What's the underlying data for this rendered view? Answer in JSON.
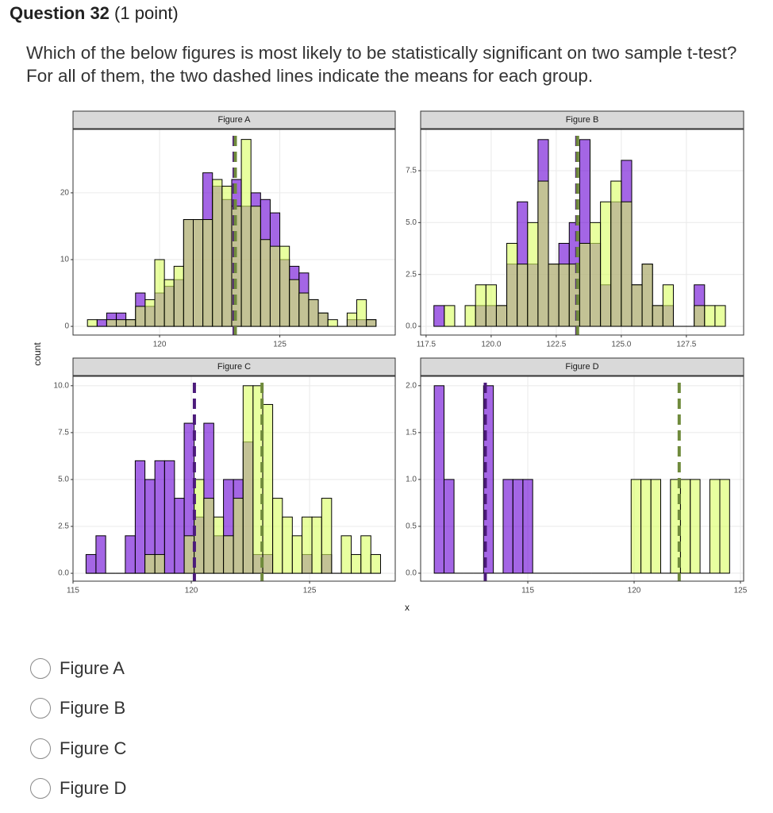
{
  "question": {
    "number": "Question 32",
    "points": "(1 point)",
    "text": "Which of the below figures is most likely to be statistically significant on two sample t-test? For all of them, the two dashed lines indicate the means for each group."
  },
  "axes": {
    "y_label": "count",
    "x_label": "x"
  },
  "chart_data": [
    {
      "type": "histogram",
      "title": "Figure A",
      "bins": [
        117,
        117.4,
        117.8,
        118.2,
        118.6,
        119,
        119.4,
        119.8,
        120.2,
        120.6,
        121,
        121.4,
        121.8,
        122.2,
        122.6,
        123,
        123.4,
        123.8,
        124.2,
        124.6,
        125,
        125.4,
        125.8,
        126.2,
        126.6,
        127,
        127.4,
        127.8,
        128.2,
        128.6,
        129
      ],
      "series": [
        {
          "color": "#6700d4",
          "mean_color": "#4b1a7a",
          "mean": 123.1,
          "values": [
            0,
            1,
            2,
            2,
            1,
            5,
            3,
            5,
            6,
            7,
            16,
            16,
            23,
            21,
            19,
            22,
            18,
            20,
            19,
            17,
            10,
            9,
            8,
            4,
            2,
            0,
            0,
            1,
            1,
            1
          ]
        },
        {
          "color": "#d9ff5f",
          "mean_color": "#6f8a3c",
          "mean": 123.15,
          "values": [
            1,
            0,
            1,
            1,
            1,
            3,
            4,
            10,
            7,
            9,
            16,
            16,
            16,
            22,
            21,
            18,
            28,
            18,
            13,
            12,
            12,
            7,
            5,
            4,
            2,
            1,
            0,
            2,
            4,
            1
          ]
        }
      ],
      "xlim": [
        116.4,
        129.8
      ],
      "ylim": [
        -1.3,
        29.5
      ],
      "xticks": [
        120,
        125
      ],
      "yticks": [
        0,
        10,
        20
      ],
      "grid": true
    },
    {
      "type": "histogram",
      "title": "Figure B",
      "bins": [
        117.8,
        118.2,
        118.6,
        119,
        119.4,
        119.8,
        120.2,
        120.6,
        121,
        121.4,
        121.8,
        122.2,
        122.6,
        123,
        123.4,
        123.8,
        124.2,
        124.6,
        125,
        125.4,
        125.8,
        126.2,
        126.6,
        127,
        127.4,
        127.8,
        128.2,
        128.6,
        129
      ],
      "series": [
        {
          "color": "#6700d4",
          "mean_color": "#4b1a7a",
          "mean": 123.29,
          "values": [
            1,
            0,
            0,
            0,
            1,
            1,
            1,
            3,
            6,
            3,
            9,
            3,
            4,
            5,
            9,
            4,
            2,
            6,
            8,
            2,
            3,
            1,
            1,
            0,
            0,
            2,
            0,
            0
          ]
        },
        {
          "color": "#d9ff5f",
          "mean_color": "#6f8a3c",
          "mean": 123.32,
          "values": [
            0,
            1,
            0,
            1,
            2,
            2,
            1,
            4,
            3,
            5,
            7,
            3,
            3,
            3,
            4,
            5,
            6,
            7,
            6,
            2,
            3,
            1,
            2,
            0,
            0,
            1,
            1,
            1
          ]
        }
      ],
      "xlim": [
        117.29,
        129.7
      ],
      "ylim": [
        -0.42,
        9.49
      ],
      "xticks": [
        117.5,
        {
          "value": 120,
          "label": "120.0"
        },
        122.5,
        {
          "value": 125,
          "label": "125.0"
        },
        127.5
      ],
      "yticks": [
        {
          "value": 0,
          "label": "0.0"
        },
        2.5,
        {
          "value": 5,
          "label": "5.0"
        },
        7.5
      ],
      "grid": true
    },
    {
      "type": "histogram",
      "title": "Figure C",
      "bins": [
        115.55,
        115.97,
        116.38,
        116.8,
        117.21,
        117.63,
        118.04,
        118.46,
        118.87,
        119.29,
        119.7,
        120.12,
        120.53,
        120.95,
        121.36,
        121.78,
        122.19,
        122.61,
        123.02,
        123.44,
        123.85,
        124.27,
        124.68,
        125.1,
        125.51,
        125.93,
        126.34,
        126.76,
        127.17,
        127.59,
        128.0
      ],
      "series": [
        {
          "color": "#6700d4",
          "mean_color": "#4b1a7a",
          "mean": 120.13,
          "values": [
            1,
            2,
            0,
            0,
            2,
            6,
            5,
            6,
            6,
            4,
            8,
            3,
            8,
            2,
            5,
            5,
            7,
            1,
            1,
            0,
            0,
            0,
            1,
            0,
            1,
            0,
            0,
            0,
            0,
            0
          ]
        },
        {
          "color": "#d9ff5f",
          "mean_color": "#6f8a3c",
          "mean": 122.99,
          "values": [
            0,
            0,
            0,
            0,
            0,
            0,
            1,
            1,
            0,
            0,
            2,
            5,
            4,
            3,
            2,
            4,
            10,
            10,
            9,
            4,
            3,
            2,
            3,
            3,
            4,
            0,
            2,
            1,
            2,
            1
          ]
        }
      ],
      "xlim": [
        115,
        128.62
      ],
      "ylim": [
        -0.42,
        10.5
      ],
      "xticks": [
        115,
        120,
        125
      ],
      "yticks": [
        {
          "value": 0,
          "label": "0.0"
        },
        2.5,
        {
          "value": 5,
          "label": "5.0"
        },
        7.5,
        {
          "value": 10,
          "label": "10.0"
        }
      ],
      "grid": true
    },
    {
      "type": "histogram",
      "title": "Figure D",
      "bins": [
        110.6,
        111.06,
        111.53,
        111.99,
        112.45,
        112.92,
        113.38,
        113.84,
        114.3,
        114.77,
        115.23,
        115.69,
        116.16,
        116.62,
        117.08,
        117.55,
        118.01,
        118.47,
        118.93,
        119.4,
        119.86,
        120.32,
        120.79,
        121.25,
        121.71,
        122.18,
        122.64,
        123.1,
        123.56,
        124.03,
        124.49
      ],
      "series": [
        {
          "color": "#6700d4",
          "mean_color": "#4b1a7a",
          "mean": 113.0,
          "values": [
            2,
            1,
            0,
            0,
            0,
            2,
            0,
            1,
            1,
            1,
            0,
            0,
            0,
            0,
            0,
            0,
            0,
            0,
            0,
            0,
            0,
            0,
            0,
            0,
            0,
            0,
            0,
            0,
            0,
            0
          ]
        },
        {
          "color": "#d9ff5f",
          "mean_color": "#6f8a3c",
          "mean": 122.12,
          "values": [
            0,
            0,
            0,
            0,
            0,
            0,
            0,
            0,
            0,
            0,
            0,
            0,
            0,
            0,
            0,
            0,
            0,
            0,
            0,
            0,
            1,
            1,
            1,
            0,
            1,
            1,
            1,
            0,
            1,
            1
          ]
        }
      ],
      "xlim": [
        109.96,
        125.15
      ],
      "ylim": [
        -0.085,
        2.1
      ],
      "xticks": [
        115,
        120,
        125
      ],
      "yticks": [
        {
          "value": 0,
          "label": "0.0"
        },
        {
          "value": 0.5,
          "label": "0.5"
        },
        {
          "value": 1,
          "label": "1.0"
        },
        {
          "value": 1.5,
          "label": "1.5"
        },
        {
          "value": 2,
          "label": "2.0"
        }
      ],
      "grid": true
    }
  ],
  "options": [
    "Figure A",
    "Figure B",
    "Figure C",
    "Figure D"
  ]
}
